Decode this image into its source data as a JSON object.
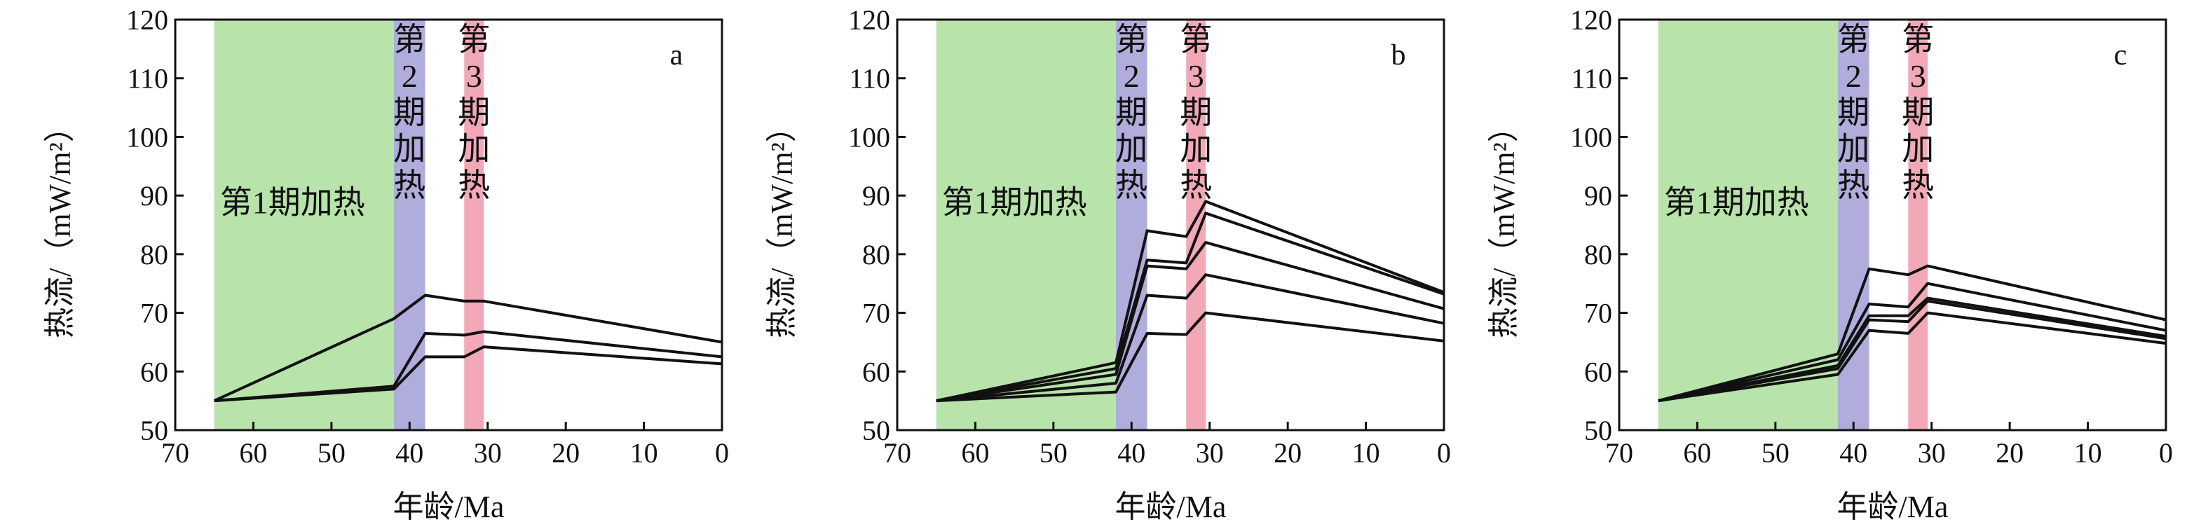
{
  "chart_data": [
    {
      "type": "line",
      "panel_label": "a",
      "xlabel": "年龄/Ma",
      "ylabel": "热流/（mW/m²）",
      "xlim": [
        70,
        0
      ],
      "ylim": [
        50,
        120
      ],
      "x_ticks": [
        70,
        60,
        50,
        40,
        30,
        20,
        10,
        0
      ],
      "y_ticks": [
        50,
        60,
        70,
        80,
        90,
        100,
        110,
        120
      ],
      "grid": false,
      "shaded_periods": [
        {
          "from": 65,
          "to": 42,
          "label": "第1期加热",
          "color": "#b8e3ab"
        },
        {
          "from": 42,
          "to": 38,
          "label": "第2期加热",
          "color": "#b0acdb"
        },
        {
          "from": 33,
          "to": 30.5,
          "label": "第3期加热",
          "color": "#f3a8b7"
        }
      ],
      "series": [
        {
          "x": [
            65,
            42,
            38,
            33,
            30.5,
            0
          ],
          "values": [
            55,
            69,
            73,
            72,
            72,
            65
          ]
        },
        {
          "x": [
            65,
            42,
            38,
            33,
            30.5,
            0
          ],
          "values": [
            55,
            57.5,
            66.5,
            66.2,
            66.8,
            62.5
          ]
        },
        {
          "x": [
            65,
            42,
            38,
            33,
            30.5,
            0
          ],
          "values": [
            55,
            57,
            62.5,
            62.5,
            64.2,
            61.3
          ]
        }
      ]
    },
    {
      "type": "line",
      "panel_label": "b",
      "xlabel": "年龄/Ma",
      "ylabel": "热流/（mW/m²）",
      "xlim": [
        70,
        0
      ],
      "ylim": [
        50,
        120
      ],
      "x_ticks": [
        70,
        60,
        50,
        40,
        30,
        20,
        10,
        0
      ],
      "y_ticks": [
        50,
        60,
        70,
        80,
        90,
        100,
        110,
        120
      ],
      "grid": false,
      "shaded_periods": [
        {
          "from": 65,
          "to": 42,
          "label": "第1期加热",
          "color": "#b8e3ab"
        },
        {
          "from": 42,
          "to": 38,
          "label": "第2期加热",
          "color": "#b0acdb"
        },
        {
          "from": 33,
          "to": 30.5,
          "label": "第3期加热",
          "color": "#f3a8b7"
        }
      ],
      "series": [
        {
          "x": [
            65,
            42,
            38,
            33,
            30.5,
            0
          ],
          "values": [
            55,
            61.5,
            84,
            83,
            89,
            73.5
          ]
        },
        {
          "x": [
            65,
            42,
            38,
            33,
            30.5,
            0
          ],
          "values": [
            55,
            60.5,
            79,
            78.5,
            87,
            73.2
          ]
        },
        {
          "x": [
            65,
            42,
            38,
            33,
            30.5,
            0
          ],
          "values": [
            55,
            59.5,
            78,
            77.5,
            82,
            70.7
          ]
        },
        {
          "x": [
            65,
            42,
            38,
            33,
            30.5,
            0
          ],
          "values": [
            55,
            58,
            73,
            72.5,
            76.5,
            68.2
          ]
        },
        {
          "x": [
            65,
            42,
            38,
            33,
            30.5,
            0
          ],
          "values": [
            55,
            56.5,
            66.5,
            66.3,
            70,
            65.2
          ]
        }
      ]
    },
    {
      "type": "line",
      "panel_label": "c",
      "xlabel": "年龄/Ma",
      "ylabel": "热流/（mW/m²）",
      "xlim": [
        70,
        0
      ],
      "ylim": [
        50,
        120
      ],
      "x_ticks": [
        70,
        60,
        50,
        40,
        30,
        20,
        10,
        0
      ],
      "y_ticks": [
        50,
        60,
        70,
        80,
        90,
        100,
        110,
        120
      ],
      "grid": false,
      "shaded_periods": [
        {
          "from": 65,
          "to": 42,
          "label": "第1期加热",
          "color": "#b8e3ab"
        },
        {
          "from": 42,
          "to": 38,
          "label": "第2期加热",
          "color": "#b0acdb"
        },
        {
          "from": 33,
          "to": 30.5,
          "label": "第3期加热",
          "color": "#f3a8b7"
        }
      ],
      "series": [
        {
          "x": [
            65,
            42,
            38,
            33,
            30.5,
            0
          ],
          "values": [
            55,
            63,
            77.5,
            76.5,
            78,
            68.8
          ]
        },
        {
          "x": [
            65,
            42,
            38,
            33,
            30.5,
            0
          ],
          "values": [
            55,
            62,
            71.5,
            71,
            75,
            67
          ]
        },
        {
          "x": [
            65,
            42,
            38,
            33,
            30.5,
            0
          ],
          "values": [
            55,
            61,
            69.5,
            69.5,
            72.5,
            66
          ]
        },
        {
          "x": [
            65,
            42,
            38,
            33,
            30.5,
            0
          ],
          "values": [
            55,
            60.5,
            68.8,
            68.5,
            72,
            65.6
          ]
        },
        {
          "x": [
            65,
            42,
            38,
            33,
            30.5,
            0
          ],
          "values": [
            55,
            59.5,
            67,
            66.5,
            70,
            64.8
          ]
        }
      ]
    }
  ]
}
